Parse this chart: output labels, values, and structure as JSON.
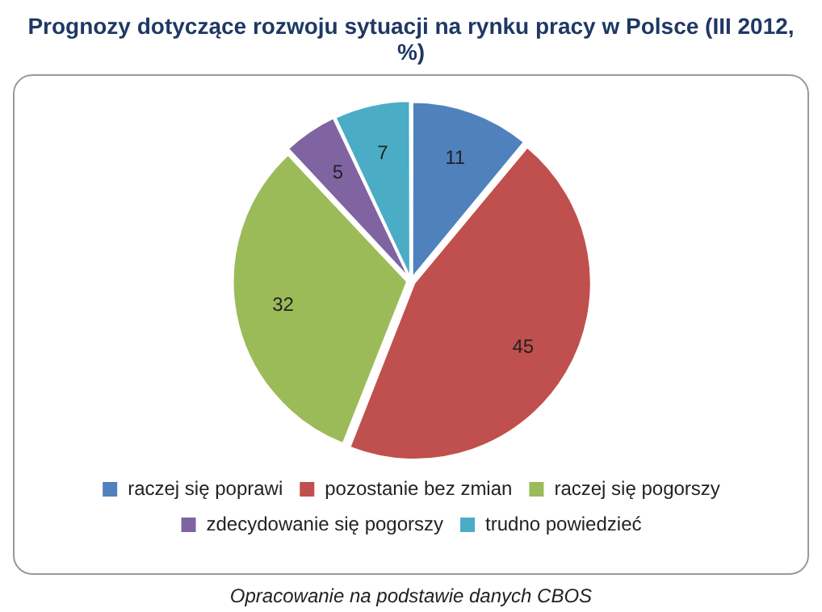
{
  "chart_data": {
    "type": "pie",
    "title": "Prognozy dotyczące rozwoju sytuacji na rynku pracy w Polsce (III 2012, %)",
    "categories": [
      "raczej się poprawi",
      "pozostanie bez zmian",
      "raczej się pogorszy",
      "zdecydowanie się pogorszy",
      "trudno powiedzieć"
    ],
    "values": [
      11,
      45,
      32,
      5,
      7
    ],
    "colors": [
      "#4f81bd",
      "#c0504d",
      "#9bbb59",
      "#8064a2",
      "#4bacc6"
    ],
    "data_labels": true,
    "legend": "bottom",
    "annotations": [
      "Opracowanie na podstawie danych CBOS"
    ]
  }
}
